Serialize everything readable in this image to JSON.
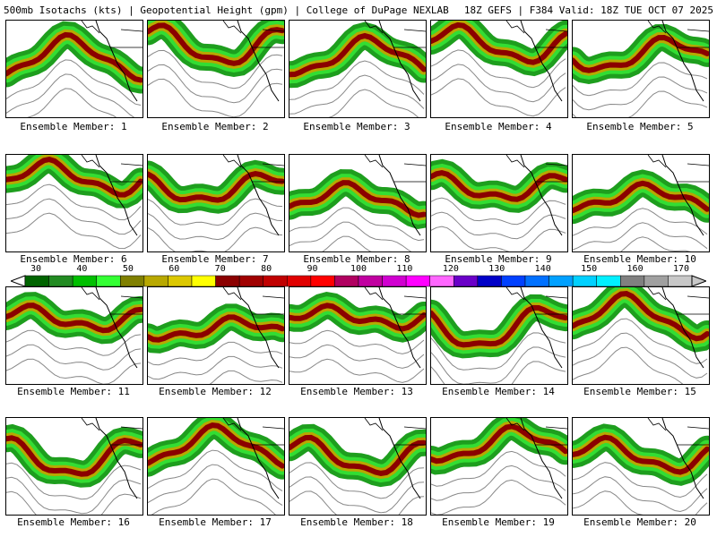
{
  "header": {
    "title": "500mb Isotachs (kts) | Geopotential Height (gpm) | College of DuPage NEXLAB",
    "run": "18Z GEFS | F384 Valid: 18Z TUE OCT 07 2025"
  },
  "colorbar": {
    "ticks": [
      "30",
      "40",
      "50",
      "60",
      "70",
      "80",
      "90",
      "100",
      "110",
      "120",
      "130",
      "140",
      "150",
      "160",
      "170"
    ],
    "colors": [
      "#006400",
      "#228b22",
      "#00bf00",
      "#33ff33",
      "#808000",
      "#b8a800",
      "#dcc800",
      "#ffff00",
      "#8b0000",
      "#a00000",
      "#c00000",
      "#e00000",
      "#ff0000",
      "#b00060",
      "#c000a0",
      "#d000d0",
      "#ff00ff",
      "#ff66ff",
      "#6a00c8",
      "#0000c8",
      "#0040ff",
      "#0070ff",
      "#00a0ff",
      "#00d0ff",
      "#00f0ff",
      "#808080",
      "#a0a0a0",
      "#c8c8c8"
    ]
  },
  "panels": [
    {
      "label": "Ensemble Member: 1"
    },
    {
      "label": "Ensemble Member: 2"
    },
    {
      "label": "Ensemble Member: 3"
    },
    {
      "label": "Ensemble Member: 4"
    },
    {
      "label": "Ensemble Member: 5"
    },
    {
      "label": "Ensemble Member: 6"
    },
    {
      "label": "Ensemble Member: 7"
    },
    {
      "label": "Ensemble Member: 8"
    },
    {
      "label": "Ensemble Member: 9"
    },
    {
      "label": "Ensemble Member: 10"
    },
    {
      "label": "Ensemble Member: 11"
    },
    {
      "label": "Ensemble Member: 12"
    },
    {
      "label": "Ensemble Member: 13"
    },
    {
      "label": "Ensemble Member: 14"
    },
    {
      "label": "Ensemble Member: 15"
    },
    {
      "label": "Ensemble Member: 16"
    },
    {
      "label": "Ensemble Member: 17"
    },
    {
      "label": "Ensemble Member: 18"
    },
    {
      "label": "Ensemble Member: 19"
    },
    {
      "label": "Ensemble Member: 20"
    }
  ]
}
